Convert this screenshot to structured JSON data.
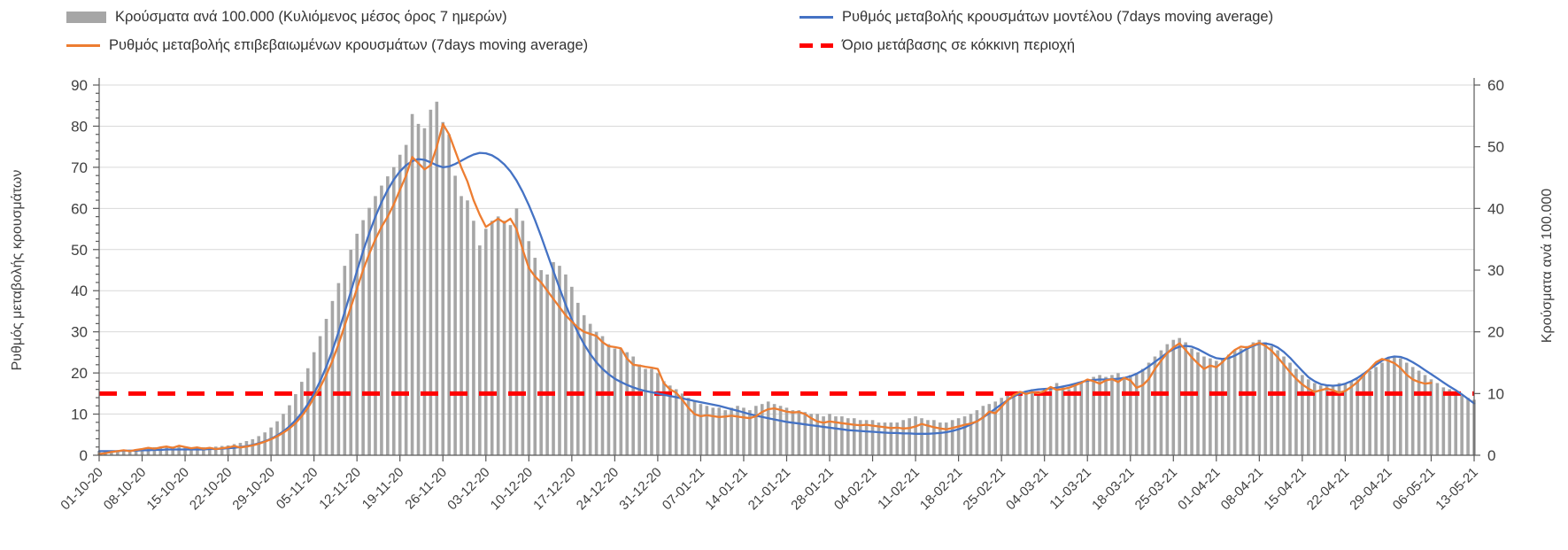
{
  "legend": {
    "items": [
      {
        "id": "cases",
        "label": "Κρούσματα ανά 100.000 (Κυλιόμενος μέσος όρος 7 ημερών)",
        "swatch": "bar",
        "color": "#a6a6a6"
      },
      {
        "id": "model_rate",
        "label": "Ρυθμός μεταβολής κρουσμάτων μοντέλου (7days moving average)",
        "swatch": "line",
        "color": "#4472c4"
      },
      {
        "id": "confirmed_rate",
        "label": "Ρυθμός μεταβολής επιβεβαιωμένων κρουσμάτων (7days moving average)",
        "swatch": "line",
        "color": "#ed7d31"
      },
      {
        "id": "threshold",
        "label": "Όριο μετάβασης σε κόκκινη περιοχή",
        "swatch": "dashed",
        "color": "#ff0000"
      }
    ]
  },
  "chart_data": {
    "type": "combo",
    "title": "",
    "grid": true,
    "legend_position": "top",
    "left_axis": {
      "title": "Ρυθμός μεταβολής κρουσμάτων",
      "min": 0,
      "max": 90,
      "step": 10
    },
    "right_axis": {
      "title": "Κρούσματα ανά 100.000",
      "min": 0,
      "max": 60,
      "step": 10
    },
    "threshold_left_value": 15,
    "threshold_right_value": 10,
    "x_tick_labels": [
      "01-10-20",
      "08-10-20",
      "15-10-20",
      "22-10-20",
      "29-10-20",
      "05-11-20",
      "12-11-20",
      "19-11-20",
      "26-11-20",
      "03-12-20",
      "10-12-20",
      "17-12-20",
      "24-12-20",
      "31-12-20",
      "07-01-21",
      "14-01-21",
      "21-01-21",
      "28-01-21",
      "04-02-21",
      "11-02-21",
      "18-02-21",
      "25-02-21",
      "04-03-21",
      "11-03-21",
      "18-03-21",
      "25-03-21",
      "01-04-21",
      "08-04-21",
      "15-04-21",
      "22-04-21",
      "29-04-21",
      "06-05-21",
      "13-05-21"
    ],
    "series": [
      {
        "name": "Κρούσματα ανά 100.000 (Κυλιόμενος μέσος όρος 7 ημερών)",
        "type": "bar",
        "axis": "right",
        "color": "#a6a6a6",
        "values": [
          0.7,
          0.7,
          0.8,
          0.8,
          0.9,
          0.9,
          1.0,
          1.1,
          1.3,
          1.3,
          1.4,
          1.3,
          1.4,
          1.5,
          1.4,
          1.3,
          1.3,
          1.3,
          1.3,
          1.4,
          1.5,
          1.6,
          1.8,
          2.0,
          2.3,
          2.6,
          3.1,
          3.7,
          4.5,
          5.5,
          6.7,
          8.1,
          9.9,
          11.9,
          14.1,
          16.7,
          19.3,
          22.1,
          25.0,
          27.9,
          30.7,
          33.3,
          35.9,
          38.1,
          40.1,
          42.0,
          43.7,
          45.2,
          46.7,
          48.7,
          50.3,
          55.3,
          53.7,
          53.0,
          56.0,
          57.3,
          54.0,
          52.0,
          45.3,
          42.0,
          41.3,
          38.0,
          34.0,
          36.7,
          38.0,
          38.7,
          38.0,
          37.3,
          40.0,
          38.0,
          34.7,
          32.0,
          30.0,
          29.3,
          31.3,
          30.7,
          29.3,
          27.3,
          24.7,
          22.7,
          21.3,
          20.0,
          19.3,
          18.0,
          17.3,
          17.3,
          16.7,
          16.0,
          14.7,
          14.0,
          14.0,
          13.3,
          12.0,
          11.3,
          10.7,
          10.0,
          9.3,
          8.7,
          8.3,
          8.0,
          7.7,
          7.7,
          7.3,
          7.7,
          8.0,
          7.7,
          7.3,
          8.0,
          8.3,
          8.7,
          8.3,
          8.0,
          7.7,
          7.3,
          7.3,
          7.0,
          6.7,
          6.7,
          6.3,
          6.7,
          6.3,
          6.3,
          6.0,
          6.0,
          5.7,
          5.7,
          5.7,
          5.3,
          5.3,
          5.3,
          5.3,
          5.7,
          6.0,
          6.3,
          6.0,
          5.7,
          5.7,
          5.3,
          5.3,
          5.7,
          6.0,
          6.3,
          6.7,
          7.3,
          8.0,
          8.3,
          8.7,
          9.3,
          9.7,
          10.0,
          10.3,
          10.3,
          10.7,
          10.3,
          10.7,
          11.0,
          11.7,
          11.0,
          10.7,
          11.3,
          11.7,
          12.3,
          12.7,
          13.0,
          12.7,
          13.0,
          13.3,
          12.7,
          13.0,
          13.3,
          14.0,
          15.0,
          16.0,
          17.0,
          18.0,
          18.7,
          19.0,
          18.3,
          17.3,
          16.7,
          16.0,
          15.7,
          15.3,
          15.7,
          16.3,
          17.0,
          17.3,
          17.7,
          18.3,
          18.7,
          18.3,
          17.7,
          17.0,
          16.0,
          15.0,
          14.0,
          13.0,
          12.3,
          11.7,
          11.3,
          11.3,
          11.3,
          11.7,
          11.7,
          12.0,
          12.3,
          13.0,
          13.7,
          14.3,
          15.0,
          15.7,
          16.0,
          15.7,
          15.0,
          14.3,
          13.7,
          13.0,
          12.3,
          11.7,
          11.0,
          10.7,
          10.0,
          9.7,
          9.3,
          9.0
        ]
      },
      {
        "name": "Ρυθμός μεταβολής κρουσμάτων μοντέλου (7days moving average)",
        "type": "line",
        "axis": "left",
        "color": "#4472c4",
        "values": [
          1.0,
          1.0,
          1.0,
          1.0,
          1.1,
          1.1,
          1.1,
          1.2,
          1.2,
          1.3,
          1.3,
          1.4,
          1.4,
          1.4,
          1.4,
          1.4,
          1.4,
          1.4,
          1.5,
          1.5,
          1.6,
          1.7,
          1.8,
          2.0,
          2.2,
          2.5,
          2.9,
          3.4,
          4.0,
          4.8,
          5.8,
          7.0,
          8.5,
          10.3,
          12.4,
          15.0,
          18.0,
          21.5,
          25.5,
          30.0,
          34.8,
          39.8,
          44.8,
          49.6,
          54.0,
          58.0,
          61.5,
          64.5,
          67.0,
          69.0,
          70.5,
          71.5,
          72.0,
          71.8,
          71.2,
          70.5,
          70.0,
          70.2,
          70.8,
          71.6,
          72.4,
          73.1,
          73.5,
          73.4,
          72.9,
          72.0,
          70.7,
          69.0,
          66.8,
          64.0,
          60.8,
          57.2,
          53.2,
          49.0,
          44.8,
          40.6,
          36.6,
          33.0,
          29.8,
          27.0,
          24.6,
          22.6,
          21.0,
          19.7,
          18.6,
          17.8,
          17.1,
          16.5,
          16.0,
          15.6,
          15.3,
          15.0,
          14.7,
          14.4,
          14.1,
          13.8,
          13.5,
          13.2,
          12.9,
          12.6,
          12.3,
          12.0,
          11.6,
          11.2,
          10.8,
          10.4,
          10.0,
          9.6,
          9.3,
          9.0,
          8.7,
          8.4,
          8.1,
          7.9,
          7.7,
          7.5,
          7.3,
          7.1,
          6.9,
          6.7,
          6.5,
          6.3,
          6.1,
          6.0,
          5.9,
          5.8,
          5.7,
          5.6,
          5.5,
          5.4,
          5.4,
          5.3,
          5.3,
          5.2,
          5.2,
          5.2,
          5.3,
          5.4,
          5.6,
          5.9,
          6.3,
          6.8,
          7.5,
          8.3,
          9.2,
          10.2,
          11.3,
          12.4,
          13.4,
          14.3,
          15.0,
          15.5,
          15.8,
          16.0,
          16.1,
          16.2,
          16.4,
          16.7,
          17.0,
          17.4,
          17.8,
          18.1,
          18.3,
          18.4,
          18.4,
          18.5,
          18.6,
          18.8,
          19.2,
          19.8,
          20.6,
          21.6,
          22.7,
          23.8,
          24.9,
          25.8,
          26.4,
          26.6,
          26.4,
          25.8,
          25.0,
          24.2,
          23.6,
          23.4,
          23.6,
          24.2,
          25.0,
          25.9,
          26.6,
          27.1,
          27.2,
          26.9,
          26.2,
          25.1,
          23.7,
          22.1,
          20.5,
          19.0,
          18.0,
          17.3,
          17.0,
          16.9,
          17.0,
          17.4,
          18.0,
          18.8,
          19.8,
          20.9,
          22.0,
          23.0,
          23.7,
          24.0,
          23.9,
          23.4,
          22.6,
          21.7,
          20.7,
          19.7,
          18.7,
          17.7,
          16.7,
          15.8,
          14.8,
          13.7,
          12.6
        ]
      },
      {
        "name": "Ρυθμός μεταβολής επιβεβαιωμένων κρουσμάτων (7days moving average)",
        "type": "line",
        "axis": "left",
        "color": "#ed7d31",
        "values": [
          0.3,
          0.5,
          0.8,
          1.0,
          1.2,
          1.0,
          1.3,
          1.5,
          1.8,
          1.6,
          1.9,
          2.1,
          1.8,
          2.3,
          2.0,
          1.7,
          1.9,
          1.6,
          1.8,
          1.5,
          1.7,
          1.9,
          2.2,
          1.9,
          2.1,
          2.4,
          2.8,
          3.3,
          3.9,
          4.6,
          5.5,
          6.5,
          7.8,
          9.5,
          11.5,
          14.0,
          16.5,
          19.5,
          23.0,
          27.0,
          31.5,
          36.0,
          40.5,
          45.0,
          49.0,
          52.5,
          55.5,
          58.0,
          61.0,
          64.5,
          68.0,
          72.5,
          71.0,
          69.5,
          70.5,
          75.0,
          80.5,
          78.0,
          74.0,
          70.0,
          66.5,
          62.0,
          58.5,
          55.5,
          56.5,
          57.5,
          56.5,
          57.5,
          55.0,
          50.0,
          45.5,
          43.5,
          42.0,
          40.0,
          38.0,
          36.0,
          34.0,
          32.5,
          31.0,
          30.0,
          29.5,
          29.0,
          27.5,
          26.5,
          26.3,
          26.0,
          23.5,
          22.0,
          21.8,
          21.5,
          21.3,
          21.0,
          17.5,
          16.0,
          15.2,
          13.5,
          11.5,
          10.0,
          9.5,
          9.7,
          9.5,
          9.3,
          9.4,
          9.6,
          9.4,
          9.2,
          9.0,
          9.5,
          10.5,
          11.2,
          11.4,
          11.0,
          10.6,
          10.4,
          10.5,
          10.0,
          9.0,
          8.2,
          7.9,
          8.2,
          8.0,
          7.8,
          7.6,
          7.4,
          7.3,
          7.4,
          7.2,
          7.0,
          6.8,
          6.6,
          6.7,
          6.5,
          6.6,
          7.0,
          7.6,
          7.2,
          6.8,
          6.5,
          6.3,
          6.6,
          7.0,
          7.4,
          7.7,
          8.2,
          9.2,
          10.6,
          10.2,
          11.8,
          13.4,
          14.6,
          15.4,
          14.9,
          15.3,
          15.1,
          15.6,
          16.6,
          15.9,
          16.1,
          16.4,
          17.0,
          17.6,
          18.4,
          18.0,
          17.4,
          18.2,
          18.5,
          17.8,
          18.8,
          18.2,
          16.4,
          17.0,
          18.5,
          21.0,
          23.0,
          24.8,
          26.2,
          27.2,
          25.6,
          23.8,
          22.3,
          21.0,
          21.8,
          21.4,
          22.6,
          24.2,
          25.6,
          26.4,
          26.2,
          26.8,
          27.3,
          26.6,
          25.4,
          23.8,
          22.0,
          20.2,
          18.6,
          17.2,
          16.2,
          15.4,
          15.8,
          16.2,
          15.8,
          15.2,
          15.6,
          16.6,
          17.8,
          19.4,
          21.0,
          22.6,
          23.4,
          23.0,
          22.4,
          21.2,
          19.6,
          18.4,
          17.8,
          17.4,
          17.6,
          null,
          null,
          null,
          null,
          null,
          null,
          null
        ]
      },
      {
        "name": "Όριο μετάβασης σε κόκκινη περιοχή",
        "type": "threshold",
        "axis": "left",
        "color": "#ff0000",
        "value": 15
      }
    ],
    "colors": {
      "bars": "#a6a6a6",
      "model": "#4472c4",
      "confirmed": "#ed7d31",
      "threshold": "#ff0000",
      "grid": "#d9d9d9",
      "axis": "#595959",
      "text": "#404040"
    }
  }
}
